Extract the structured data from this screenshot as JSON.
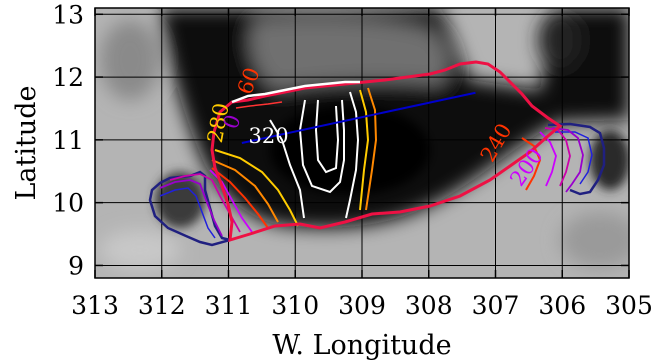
{
  "axes": {
    "xlabel": "W. Longitude",
    "ylabel": "Latitude",
    "x_ticks": [
      "313",
      "312",
      "311",
      "310",
      "309",
      "308",
      "307",
      "306",
      "305"
    ],
    "y_ticks": [
      "13",
      "12",
      "11",
      "10",
      "9"
    ],
    "xlim": [
      313,
      305
    ],
    "ylim": [
      8.8,
      13.1
    ],
    "x_reversed": true,
    "grid": true
  },
  "map": {
    "background": "grayscale infrared image",
    "profile_line": {
      "color": "#0000cc",
      "from": [
        310.8,
        10.95
      ],
      "to": [
        307.3,
        11.75
      ]
    }
  },
  "contour_labels": [
    {
      "text": "280",
      "color": "#ffcc00",
      "lon": 311.05,
      "lat": 11.25,
      "rotate": -80
    },
    {
      "text": "60",
      "color": "#ff3300",
      "lon": 310.6,
      "lat": 11.9,
      "rotate": -70
    },
    {
      "text": "0",
      "color": "#9900cc",
      "lon": 310.85,
      "lat": 11.25,
      "rotate": -70
    },
    {
      "text": "320",
      "color": "#ffffff",
      "lon": 310.4,
      "lat": 10.95,
      "rotate": 0
    },
    {
      "text": "240",
      "color": "#ff3300",
      "lon": 306.9,
      "lat": 10.9,
      "rotate": -60
    },
    {
      "text": "200",
      "color": "#cc00ff",
      "lon": 306.45,
      "lat": 10.5,
      "rotate": -55
    }
  ],
  "chart_data": {
    "type": "heatmap",
    "title": "",
    "xlabel": "W. Longitude",
    "ylabel": "Latitude",
    "xlim": [
      313,
      305
    ],
    "ylim": [
      8.8,
      13.1
    ],
    "grid": true,
    "contour_levels": [
      {
        "level": 200,
        "color": "#cc00ff"
      },
      {
        "level": 240,
        "color": "#ff3300"
      },
      {
        "level": 280,
        "color": "#ffcc00"
      },
      {
        "level": 320,
        "color": "#ffffff"
      }
    ]
  }
}
